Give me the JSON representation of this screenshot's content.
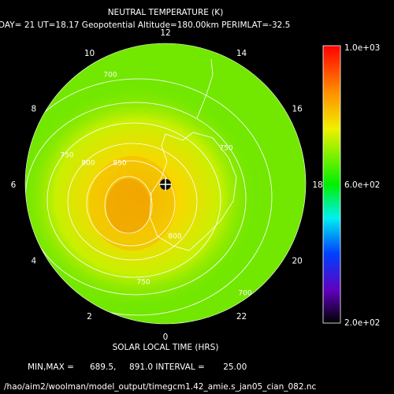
{
  "header": {
    "title": "NEUTRAL TEMPERATURE (K)",
    "subtitle": "DAY= 21 UT=18.17 Geopotential Altitude=180.00km PERIMLAT=-32.5"
  },
  "local_time_labels": [
    "12",
    "14",
    "16",
    "18",
    "20",
    "22",
    "0",
    "2",
    "4",
    "6",
    "8",
    "10"
  ],
  "contour_labels": [
    "700",
    "750",
    "800",
    "850",
    "750",
    "800",
    "750",
    "700"
  ],
  "colorbar": {
    "labels": [
      "1.0e+03",
      "6.0e+02",
      "2.0e+02"
    ]
  },
  "axis_label": "SOLAR LOCAL TIME (HRS)",
  "stats": "MIN,MAX =      689.5,     891.0 INTERVAL =       25.00",
  "footer": "/hao/aim2/woolman/model_output/timegcm1.42_amie.s_jan05_cian_082.nc"
}
